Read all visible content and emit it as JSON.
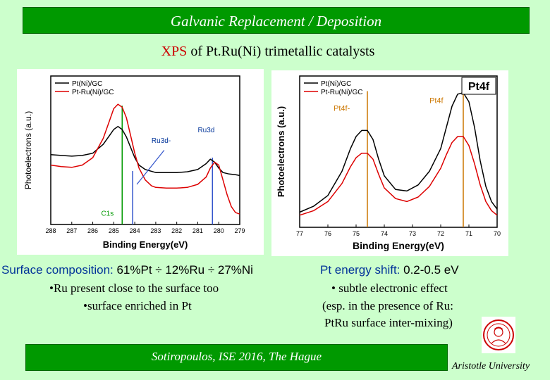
{
  "header": {
    "title": "Galvanic Replacement / Deposition"
  },
  "subtitle": {
    "part1": "XPS",
    "part2": " of Pt.Ru(Ni) trimetallic catalysts"
  },
  "left_text": {
    "line1_label": "Surface composition:",
    "line1_value": " 61%Pt  ÷ 12%Ru ÷ 27%Ni",
    "line2": "•Ru present close to the surface too",
    "line3": "•surface enriched in  Pt"
  },
  "right_text": {
    "line1_label": "Pt energy shift:",
    "line1_value": " 0.2-0.5 eV",
    "line2": "• subtle electronic effect",
    "line3": "(esp. in the presence of Ru:",
    "line4": "PtRu surface inter-mixing)"
  },
  "footer": {
    "text": "Sotiropoulos, ISE 2016, The Hague",
    "university": "Aristotle University"
  },
  "colors": {
    "banner": "#009900",
    "background": "#ccffcc",
    "series_black": "#000000",
    "series_red": "#dd0000"
  },
  "chart_data": [
    {
      "type": "line",
      "xlabel": "Binding Energy(eV)",
      "ylabel": "Photoelectrons (a.u.)",
      "xlim": [
        288,
        279
      ],
      "x_reversed": true,
      "xticks": [
        288,
        287,
        286,
        285,
        284,
        283,
        282,
        281,
        280,
        279
      ],
      "ylim": [
        0,
        100
      ],
      "legend": [
        "Pt(Ni)/GC",
        "Pt-Ru(Ni)/GC"
      ],
      "legend_position": "top-left",
      "annotations": [
        "C1s",
        "Ru3d-",
        "Ru3d"
      ],
      "markers": [
        {
          "label": "C1s",
          "x": 284.6,
          "color": "#009900"
        },
        {
          "label": "Ru3d-",
          "x": 284.1,
          "color": "#3355cc"
        },
        {
          "label": "Ru3d",
          "x": 280.3,
          "color": "#3355cc"
        }
      ],
      "series": [
        {
          "name": "Pt(Ni)/GC",
          "color": "#000000",
          "x": [
            288,
            287.5,
            287,
            286.5,
            286,
            285.5,
            285.2,
            285,
            284.8,
            284.6,
            284.4,
            284.2,
            284,
            283.8,
            283.5,
            283,
            282.5,
            282,
            281.5,
            281,
            280.6,
            280.4,
            280.2,
            280,
            279.8,
            279.5,
            279.2,
            279
          ],
          "values": [
            47,
            46.5,
            46,
            46.5,
            48,
            54,
            60,
            64,
            66,
            64,
            59,
            52,
            45,
            40,
            37,
            35,
            35,
            35,
            35.5,
            37,
            41,
            44,
            42,
            38,
            35,
            34,
            33.5,
            33
          ]
        },
        {
          "name": "Pt-Ru(Ni)/GC",
          "color": "#dd0000",
          "x": [
            288,
            287.5,
            287,
            286.5,
            286,
            285.5,
            285.2,
            285,
            284.8,
            284.6,
            284.4,
            284.2,
            284,
            283.8,
            283.5,
            283.2,
            283,
            282.5,
            282,
            281.5,
            281,
            280.6,
            280.4,
            280.2,
            280,
            279.8,
            279.6,
            279.4,
            279.2,
            279
          ],
          "values": [
            40,
            39,
            38.5,
            40,
            45,
            58,
            70,
            78,
            81,
            79,
            72,
            60,
            48,
            38,
            30,
            26,
            25,
            24.5,
            24.5,
            25,
            27,
            32,
            38,
            42,
            40,
            30,
            20,
            12,
            8,
            7
          ]
        }
      ]
    },
    {
      "type": "line",
      "xlabel": "Binding Energy(eV)",
      "ylabel": "Photoelectrons (a.u.)",
      "title": "Pt4f",
      "xlim": [
        77,
        70
      ],
      "x_reversed": true,
      "xticks": [
        77,
        76,
        75,
        74,
        73,
        72,
        71,
        70
      ],
      "ylim": [
        0,
        100
      ],
      "legend": [
        "Pt(Ni)/GC",
        "Pt-Ru(Ni)/GC"
      ],
      "legend_position": "top-left",
      "annotations": [
        "Pt4f",
        "Pt4f-"
      ],
      "markers": [
        {
          "label": "Pt4f-",
          "x": 74.6,
          "color": "#cc7700"
        },
        {
          "label": "Pt4f",
          "x": 71.2,
          "color": "#cc7700"
        }
      ],
      "series": [
        {
          "name": "Pt(Ni)/GC",
          "color": "#000000",
          "x": [
            77,
            76.5,
            76,
            75.5,
            75.2,
            75,
            74.8,
            74.6,
            74.4,
            74.2,
            74,
            73.6,
            73.2,
            72.8,
            72.4,
            72,
            71.8,
            71.6,
            71.4,
            71.2,
            71,
            70.8,
            70.6,
            70.4,
            70.2,
            70
          ],
          "values": [
            10,
            14,
            21,
            37,
            52,
            60,
            64,
            64,
            58,
            45,
            34,
            25,
            24,
            28,
            37,
            52,
            66,
            80,
            88,
            89,
            83,
            66,
            44,
            27,
            17,
            12
          ]
        },
        {
          "name": "Pt-Ru(Ni)/GC",
          "color": "#dd0000",
          "x": [
            77,
            76.5,
            76,
            75.5,
            75.2,
            75,
            74.8,
            74.6,
            74.4,
            74.2,
            74,
            73.6,
            73.2,
            72.8,
            72.4,
            72,
            71.8,
            71.6,
            71.4,
            71.2,
            71,
            70.8,
            70.6,
            70.4,
            70.2,
            70
          ],
          "values": [
            8,
            11,
            17,
            29,
            40,
            46,
            49,
            49,
            45,
            35,
            26,
            19,
            17,
            20,
            27,
            39,
            48,
            56,
            60,
            60,
            54,
            42,
            28,
            17,
            11,
            8
          ]
        }
      ]
    }
  ]
}
